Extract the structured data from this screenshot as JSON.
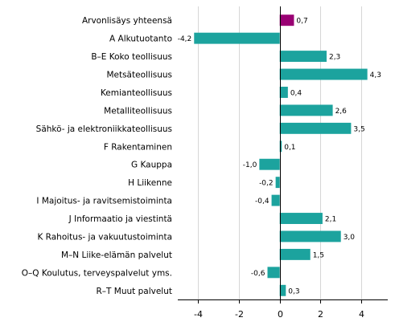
{
  "chart_data": {
    "type": "bar",
    "orientation": "horizontal",
    "categories": [
      "Arvonlisäys yhteensä",
      "A Alkutuotanto",
      "B–E Koko teollisuus",
      "Metsäteollisuus",
      "Kemianteollisuus",
      "Metalliteollisuus",
      "Sähkö- ja elektroniikkateollisuus",
      "F Rakentaminen",
      "G Kauppa",
      "H Liikenne",
      "I Majoitus- ja ravitsemistoiminta",
      "J Informaatio ja viestintä",
      "K Rahoitus- ja vakuutustoiminta",
      "M–N Liike-elämän palvelut",
      "O–Q Koulutus, terveyspalvelut yms.",
      "R–T Muut palvelut"
    ],
    "values": [
      0.7,
      -4.2,
      2.3,
      4.3,
      0.4,
      2.6,
      3.5,
      0.1,
      -1.0,
      -0.2,
      -0.4,
      2.1,
      3.0,
      1.5,
      -0.6,
      0.3
    ],
    "value_labels": [
      "0,7",
      "-4,2",
      "2,3",
      "4,3",
      "0,4",
      "2,6",
      "3,5",
      "0,1",
      "-1,0",
      "-0,2",
      "-0,4",
      "2,1",
      "3,0",
      "1,5",
      "-0,6",
      "0,3"
    ],
    "colors": [
      "#990073",
      "#1ca39e",
      "#1ca39e",
      "#1ca39e",
      "#1ca39e",
      "#1ca39e",
      "#1ca39e",
      "#1ca39e",
      "#1ca39e",
      "#1ca39e",
      "#1ca39e",
      "#1ca39e",
      "#1ca39e",
      "#1ca39e",
      "#1ca39e",
      "#1ca39e"
    ],
    "xticks": [
      -4,
      -2,
      0,
      2,
      4
    ],
    "xtick_labels": [
      "-4",
      "-2",
      "0",
      "2",
      "4"
    ],
    "xlim": [
      -5,
      5.3
    ],
    "grid": "vertical",
    "title": "",
    "xlabel": "",
    "ylabel": ""
  }
}
